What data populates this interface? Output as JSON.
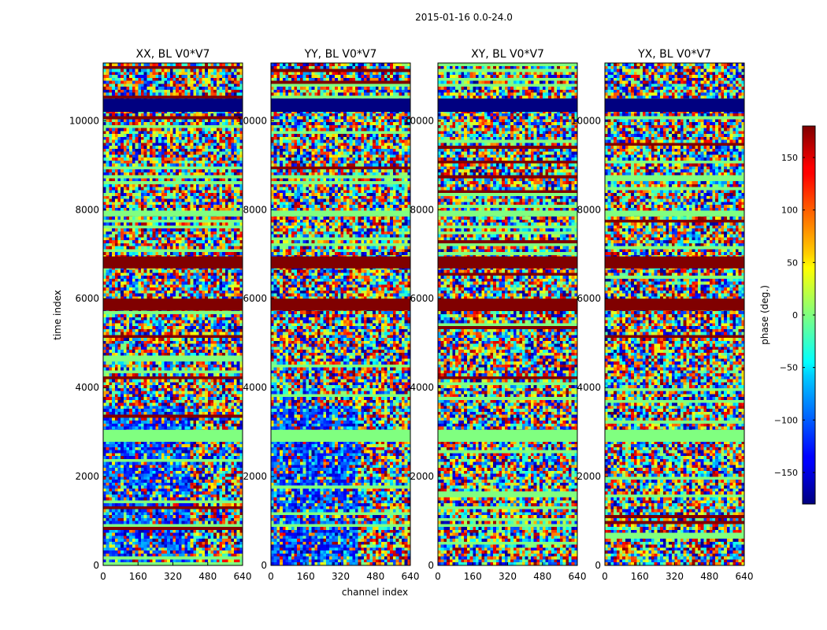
{
  "chart_data": {
    "type": "heatmap",
    "suptitle": "2015-01-16 0.0-24.0",
    "xlabel": "channel index",
    "ylabel": "time index",
    "xlim": [
      0,
      640
    ],
    "ylim": [
      0,
      11300
    ],
    "xticks": [
      0,
      160,
      320,
      480,
      640
    ],
    "yticks": [
      0,
      2000,
      4000,
      6000,
      8000,
      10000
    ],
    "xtick_labels": [
      "0",
      "160",
      "320",
      "480",
      "640"
    ],
    "ytick_labels": [
      "0",
      "2000",
      "4000",
      "6000",
      "8000",
      "10000"
    ],
    "panels": [
      {
        "title": "XX, BL V0*V7"
      },
      {
        "title": "YY, BL V0*V7"
      },
      {
        "title": "XY, BL V0*V7"
      },
      {
        "title": "YX, BL V0*V7"
      }
    ],
    "colorbar": {
      "label": "phase (deg.)",
      "range": [
        -180,
        180
      ],
      "colormap": "jet",
      "ticks": [
        -150,
        -100,
        -50,
        0,
        50,
        100,
        150
      ],
      "tick_labels": [
        "−150",
        "−100",
        "−50",
        "0",
        "50",
        "100",
        "150"
      ]
    },
    "bands": [
      {
        "from": 5730,
        "to": 6000,
        "value": 180,
        "label": "saturated phase band"
      },
      {
        "from": 6680,
        "to": 6950,
        "value": 180,
        "label": "saturated phase band"
      },
      {
        "from": 2780,
        "to": 3050,
        "value": 0,
        "label": "zero phase band"
      },
      {
        "from": 7850,
        "to": 7980,
        "value": 0,
        "label": "zero phase band"
      },
      {
        "from": 10200,
        "to": 10500,
        "value": -180,
        "label": "low phase band"
      }
    ]
  }
}
